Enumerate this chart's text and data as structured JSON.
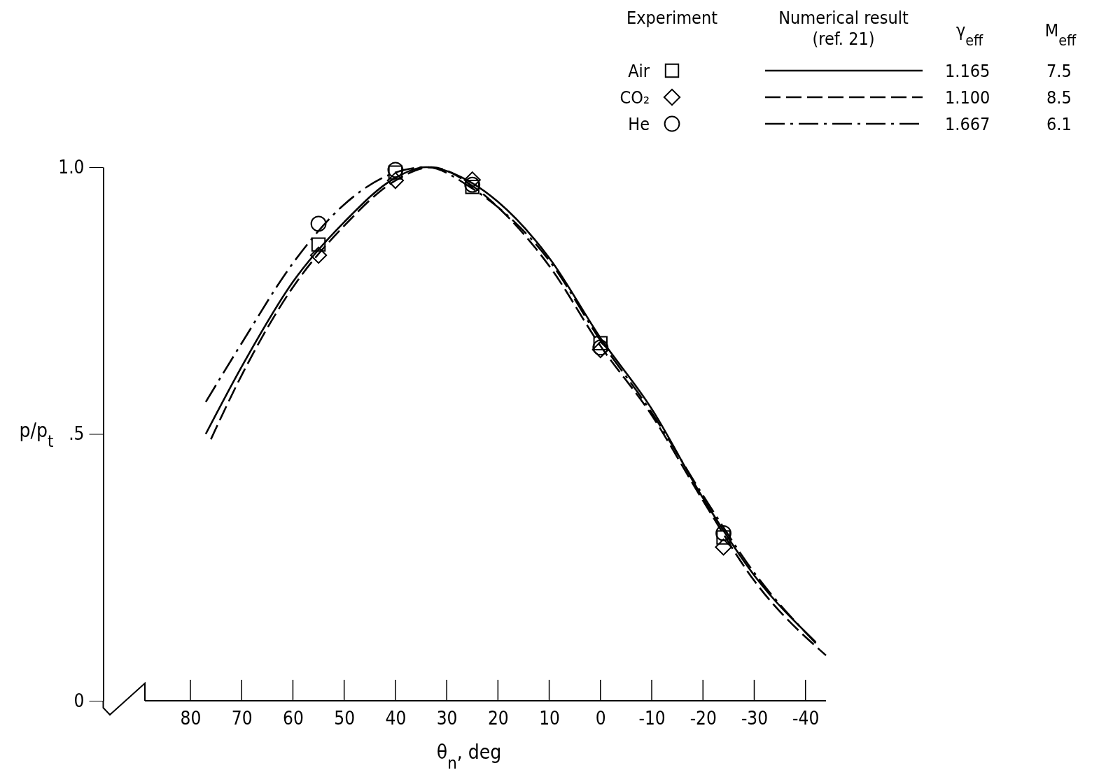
{
  "chart_data": {
    "type": "line",
    "xlabel": "θ$_{n}$, deg",
    "ylabel": "p/p$_{t}$",
    "xlim": [
      97,
      -44
    ],
    "ylim": [
      0,
      1.0
    ],
    "xticks": [
      80,
      70,
      60,
      50,
      40,
      30,
      20,
      10,
      0,
      -10,
      -20,
      -30,
      -40
    ],
    "yticks": [
      {
        "value": 0,
        "label": "0"
      },
      {
        "value": 0.5,
        "label": ".5"
      },
      {
        "value": 1.0,
        "label": "1.0"
      }
    ],
    "legend": "top right",
    "grid": false,
    "annotations": [
      "Experiment",
      "Numerical result (ref. 21)",
      "γ$_{eff}$",
      "M$_{eff}$",
      "1.165",
      "7.5",
      "1.100",
      "8.5",
      "1.667",
      "6.1"
    ],
    "series": [
      {
        "name": "Air",
        "type": "scatter",
        "marker": "square",
        "color": "#000000",
        "x": [
          55,
          40,
          25,
          0,
          -24
        ],
        "values": [
          0.855,
          0.99,
          0.963,
          0.67,
          0.306
        ]
      },
      {
        "name": "CO₂",
        "type": "scatter",
        "marker": "diamond",
        "color": "#000000",
        "x": [
          55,
          40,
          25,
          0,
          -24
        ],
        "values": [
          0.835,
          0.975,
          0.976,
          0.658,
          0.288
        ]
      },
      {
        "name": "He",
        "type": "scatter",
        "marker": "circle",
        "color": "#000000",
        "x": [
          55,
          40,
          25,
          0,
          -24
        ],
        "values": [
          0.894,
          0.995,
          0.967,
          0.662,
          0.314
        ]
      },
      {
        "line_style": "solid",
        "color": "#000000",
        "x": [
          77,
          70,
          60,
          50,
          40,
          34,
          25,
          20,
          10,
          0,
          -10,
          -20,
          -30,
          -42
        ],
        "values": [
          0.5,
          0.626,
          0.785,
          0.897,
          0.98,
          1.0,
          0.97,
          0.935,
          0.83,
          0.68,
          0.547,
          0.38,
          0.235,
          0.11
        ]
      },
      {
        "line_style": "dashed",
        "color": "#000000",
        "x": [
          76,
          70,
          60,
          50,
          40,
          33,
          25,
          20,
          10,
          0,
          -10,
          -20,
          -30,
          -44
        ],
        "values": [
          0.49,
          0.61,
          0.775,
          0.89,
          0.975,
          1.0,
          0.965,
          0.925,
          0.815,
          0.665,
          0.535,
          0.375,
          0.225,
          0.085
        ]
      },
      {
        "line_style": "dashdot",
        "color": "#000000",
        "x": [
          77,
          70,
          60,
          50,
          40,
          34,
          25,
          20,
          10,
          0,
          -10,
          -20,
          -30,
          -42
        ],
        "values": [
          0.56,
          0.67,
          0.82,
          0.93,
          0.99,
          1.0,
          0.96,
          0.925,
          0.825,
          0.675,
          0.54,
          0.385,
          0.24,
          0.108
        ]
      }
    ]
  }
}
